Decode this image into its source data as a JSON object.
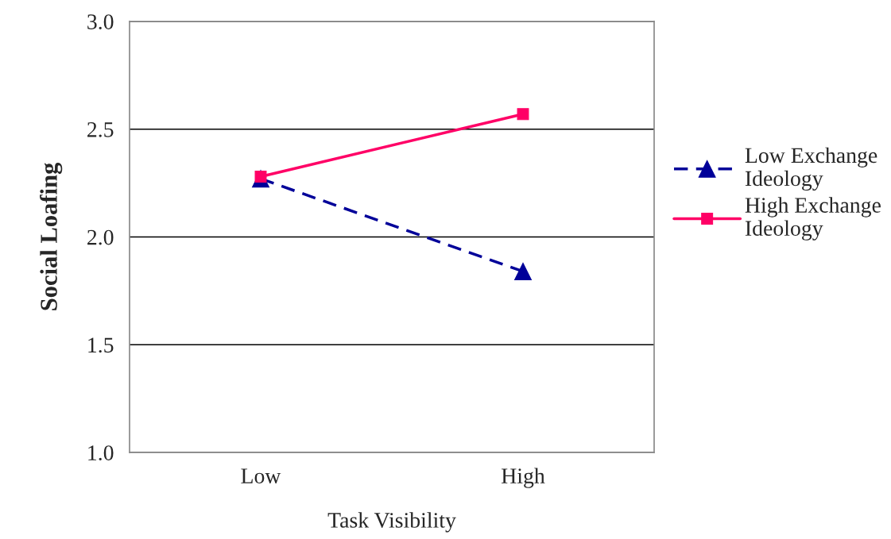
{
  "chart_data": {
    "type": "line",
    "xlabel": "Task Visibility",
    "ylabel": "Social Loafing",
    "categories": [
      "Low",
      "High"
    ],
    "series": [
      {
        "name": "Low Exchange Ideology",
        "color": "#000099",
        "values": [
          2.27,
          1.84
        ],
        "marker": "triangle",
        "line_style": "dashed"
      },
      {
        "name": "High Exchange Ideology",
        "color": "#ff0066",
        "values": [
          2.28,
          2.57
        ],
        "marker": "square",
        "line_style": "solid"
      }
    ],
    "ylim": [
      1.0,
      3.0
    ],
    "yticks": [
      {
        "value": 1.0,
        "label": "1.0"
      },
      {
        "value": 1.5,
        "label": "1.5"
      },
      {
        "value": 2.0,
        "label": "2.0"
      },
      {
        "value": 2.5,
        "label": "2.5"
      },
      {
        "value": 3.0,
        "label": "3.0"
      }
    ],
    "grid": "y",
    "legend": "right"
  }
}
